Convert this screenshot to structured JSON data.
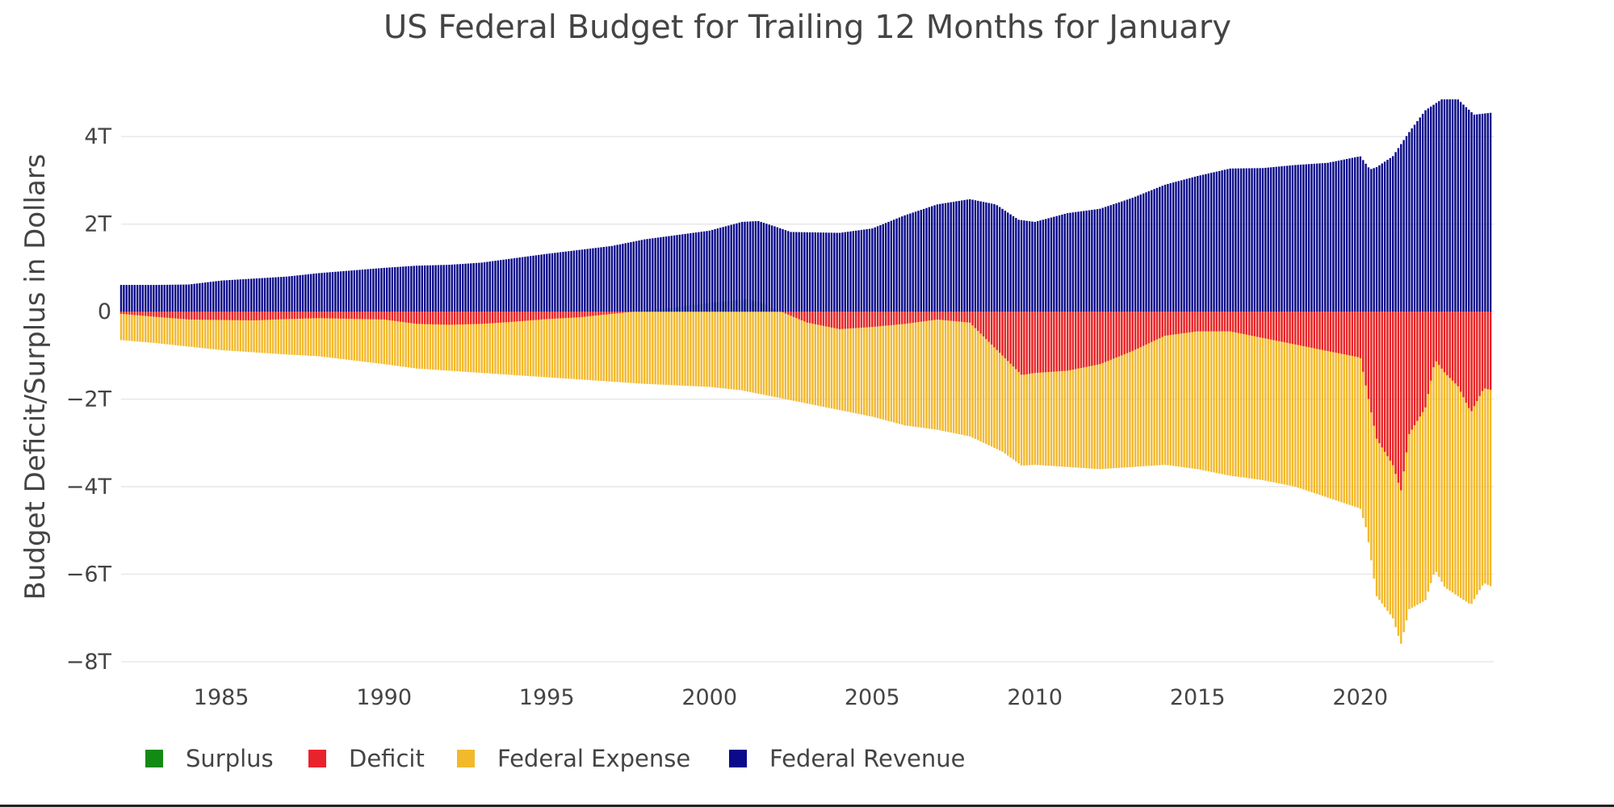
{
  "chart_data": {
    "type": "bar",
    "title": "US Federal Budget for Trailing 12 Months for January",
    "xlabel": "",
    "ylabel": "Budget Deficit/Surplus in Dollars",
    "x_start": 1981.92,
    "x_end": 2024.08,
    "x_step_months": 1,
    "xlim": [
      1981.92,
      2024.1
    ],
    "ylim": [
      -8.0,
      5.0
    ],
    "x_ticks": [
      1985,
      1990,
      1995,
      2000,
      2005,
      2010,
      2015,
      2020
    ],
    "x_tick_labels": [
      "1985",
      "1990",
      "1995",
      "2000",
      "2005",
      "2010",
      "2015",
      "2020"
    ],
    "y_ticks": [
      4,
      2,
      0,
      -2,
      -4,
      -6,
      -8
    ],
    "y_tick_labels": [
      "4T",
      "2T",
      "0",
      "−2T",
      "−4T",
      "−6T",
      "−8T"
    ],
    "y_units": "trillions of dollars",
    "grid": true,
    "legend_position": "bottom-left",
    "series": [
      {
        "name": "Federal Revenue",
        "color": "#0a0a8a",
        "anchor_points": [
          [
            1981.92,
            0.61
          ],
          [
            1983.0,
            0.61
          ],
          [
            1984.0,
            0.62
          ],
          [
            1985.0,
            0.71
          ],
          [
            1987.0,
            0.8
          ],
          [
            1988.0,
            0.88
          ],
          [
            1990.0,
            1.0
          ],
          [
            1991.0,
            1.05
          ],
          [
            1992.0,
            1.07
          ],
          [
            1993.0,
            1.12
          ],
          [
            1995.0,
            1.32
          ],
          [
            1997.0,
            1.5
          ],
          [
            1998.0,
            1.65
          ],
          [
            2000.0,
            1.85
          ],
          [
            2001.0,
            2.05
          ],
          [
            2001.5,
            2.07
          ],
          [
            2002.0,
            1.95
          ],
          [
            2002.5,
            1.82
          ],
          [
            2004.0,
            1.8
          ],
          [
            2005.0,
            1.9
          ],
          [
            2006.0,
            2.2
          ],
          [
            2007.0,
            2.45
          ],
          [
            2008.0,
            2.57
          ],
          [
            2008.8,
            2.45
          ],
          [
            2009.5,
            2.1
          ],
          [
            2010.0,
            2.05
          ],
          [
            2011.0,
            2.25
          ],
          [
            2012.0,
            2.35
          ],
          [
            2013.0,
            2.6
          ],
          [
            2014.0,
            2.9
          ],
          [
            2015.0,
            3.1
          ],
          [
            2016.0,
            3.27
          ],
          [
            2017.0,
            3.28
          ],
          [
            2018.0,
            3.35
          ],
          [
            2019.0,
            3.4
          ],
          [
            2020.0,
            3.55
          ],
          [
            2020.3,
            3.25
          ],
          [
            2020.5,
            3.3
          ],
          [
            2021.0,
            3.55
          ],
          [
            2021.5,
            4.1
          ],
          [
            2022.0,
            4.6
          ],
          [
            2022.5,
            4.85
          ],
          [
            2023.0,
            4.85
          ],
          [
            2023.5,
            4.5
          ],
          [
            2024.08,
            4.55
          ]
        ]
      },
      {
        "name": "Federal Expense",
        "color": "#f2b92d",
        "anchor_points": [
          [
            1981.92,
            -0.65
          ],
          [
            1983.0,
            -0.72
          ],
          [
            1984.0,
            -0.8
          ],
          [
            1985.0,
            -0.88
          ],
          [
            1987.0,
            -0.98
          ],
          [
            1988.0,
            -1.02
          ],
          [
            1990.0,
            -1.2
          ],
          [
            1991.0,
            -1.3
          ],
          [
            1992.0,
            -1.35
          ],
          [
            1993.0,
            -1.4
          ],
          [
            1995.0,
            -1.5
          ],
          [
            1997.0,
            -1.6
          ],
          [
            1998.0,
            -1.65
          ],
          [
            2000.0,
            -1.72
          ],
          [
            2001.0,
            -1.8
          ],
          [
            2002.0,
            -1.95
          ],
          [
            2003.0,
            -2.1
          ],
          [
            2004.0,
            -2.25
          ],
          [
            2005.0,
            -2.4
          ],
          [
            2006.0,
            -2.6
          ],
          [
            2007.0,
            -2.7
          ],
          [
            2008.0,
            -2.85
          ],
          [
            2009.0,
            -3.2
          ],
          [
            2009.6,
            -3.52
          ],
          [
            2010.0,
            -3.5
          ],
          [
            2011.0,
            -3.55
          ],
          [
            2012.0,
            -3.6
          ],
          [
            2013.0,
            -3.55
          ],
          [
            2014.0,
            -3.5
          ],
          [
            2015.0,
            -3.6
          ],
          [
            2016.0,
            -3.75
          ],
          [
            2017.0,
            -3.85
          ],
          [
            2018.0,
            -4.0
          ],
          [
            2019.0,
            -4.25
          ],
          [
            2020.0,
            -4.5
          ],
          [
            2020.2,
            -5.0
          ],
          [
            2020.5,
            -6.5
          ],
          [
            2021.0,
            -7.0
          ],
          [
            2021.25,
            -7.6
          ],
          [
            2021.5,
            -6.8
          ],
          [
            2022.0,
            -6.6
          ],
          [
            2022.3,
            -5.9
          ],
          [
            2022.6,
            -6.3
          ],
          [
            2023.0,
            -6.5
          ],
          [
            2023.4,
            -6.7
          ],
          [
            2023.8,
            -6.2
          ],
          [
            2024.08,
            -6.3
          ]
        ]
      },
      {
        "name": "Deficit",
        "color": "#e8232d",
        "anchor_points": [
          [
            1981.92,
            -0.05
          ],
          [
            1983.0,
            -0.12
          ],
          [
            1984.0,
            -0.18
          ],
          [
            1986.0,
            -0.2
          ],
          [
            1987.0,
            -0.17
          ],
          [
            1988.0,
            -0.15
          ],
          [
            1990.0,
            -0.18
          ],
          [
            1991.0,
            -0.28
          ],
          [
            1992.0,
            -0.3
          ],
          [
            1993.0,
            -0.28
          ],
          [
            1994.0,
            -0.23
          ],
          [
            1995.0,
            -0.17
          ],
          [
            1996.0,
            -0.13
          ],
          [
            1997.0,
            -0.05
          ],
          [
            1997.7,
            0.0
          ],
          [
            2002.2,
            0.0
          ],
          [
            2003.0,
            -0.25
          ],
          [
            2004.0,
            -0.4
          ],
          [
            2005.0,
            -0.35
          ],
          [
            2006.0,
            -0.28
          ],
          [
            2007.0,
            -0.18
          ],
          [
            2008.0,
            -0.25
          ],
          [
            2009.0,
            -1.0
          ],
          [
            2009.6,
            -1.45
          ],
          [
            2010.0,
            -1.4
          ],
          [
            2011.0,
            -1.35
          ],
          [
            2012.0,
            -1.2
          ],
          [
            2013.0,
            -0.9
          ],
          [
            2014.0,
            -0.55
          ],
          [
            2015.0,
            -0.45
          ],
          [
            2016.0,
            -0.45
          ],
          [
            2017.0,
            -0.6
          ],
          [
            2018.0,
            -0.75
          ],
          [
            2019.0,
            -0.9
          ],
          [
            2020.0,
            -1.05
          ],
          [
            2020.2,
            -1.8
          ],
          [
            2020.5,
            -2.9
          ],
          [
            2021.0,
            -3.5
          ],
          [
            2021.25,
            -4.1
          ],
          [
            2021.5,
            -2.8
          ],
          [
            2022.0,
            -2.2
          ],
          [
            2022.3,
            -1.1
          ],
          [
            2022.6,
            -1.4
          ],
          [
            2023.0,
            -1.7
          ],
          [
            2023.4,
            -2.3
          ],
          [
            2023.8,
            -1.75
          ],
          [
            2024.08,
            -1.8
          ]
        ]
      },
      {
        "name": "Surplus",
        "color": "#138a13",
        "anchor_points": [
          [
            1997.7,
            0.0
          ],
          [
            1998.2,
            0.04
          ],
          [
            1999.0,
            0.1
          ],
          [
            2000.0,
            0.2
          ],
          [
            2000.8,
            0.26
          ],
          [
            2001.2,
            0.28
          ],
          [
            2001.6,
            0.2
          ],
          [
            2002.0,
            0.05
          ],
          [
            2002.2,
            0.0
          ]
        ]
      }
    ]
  }
}
